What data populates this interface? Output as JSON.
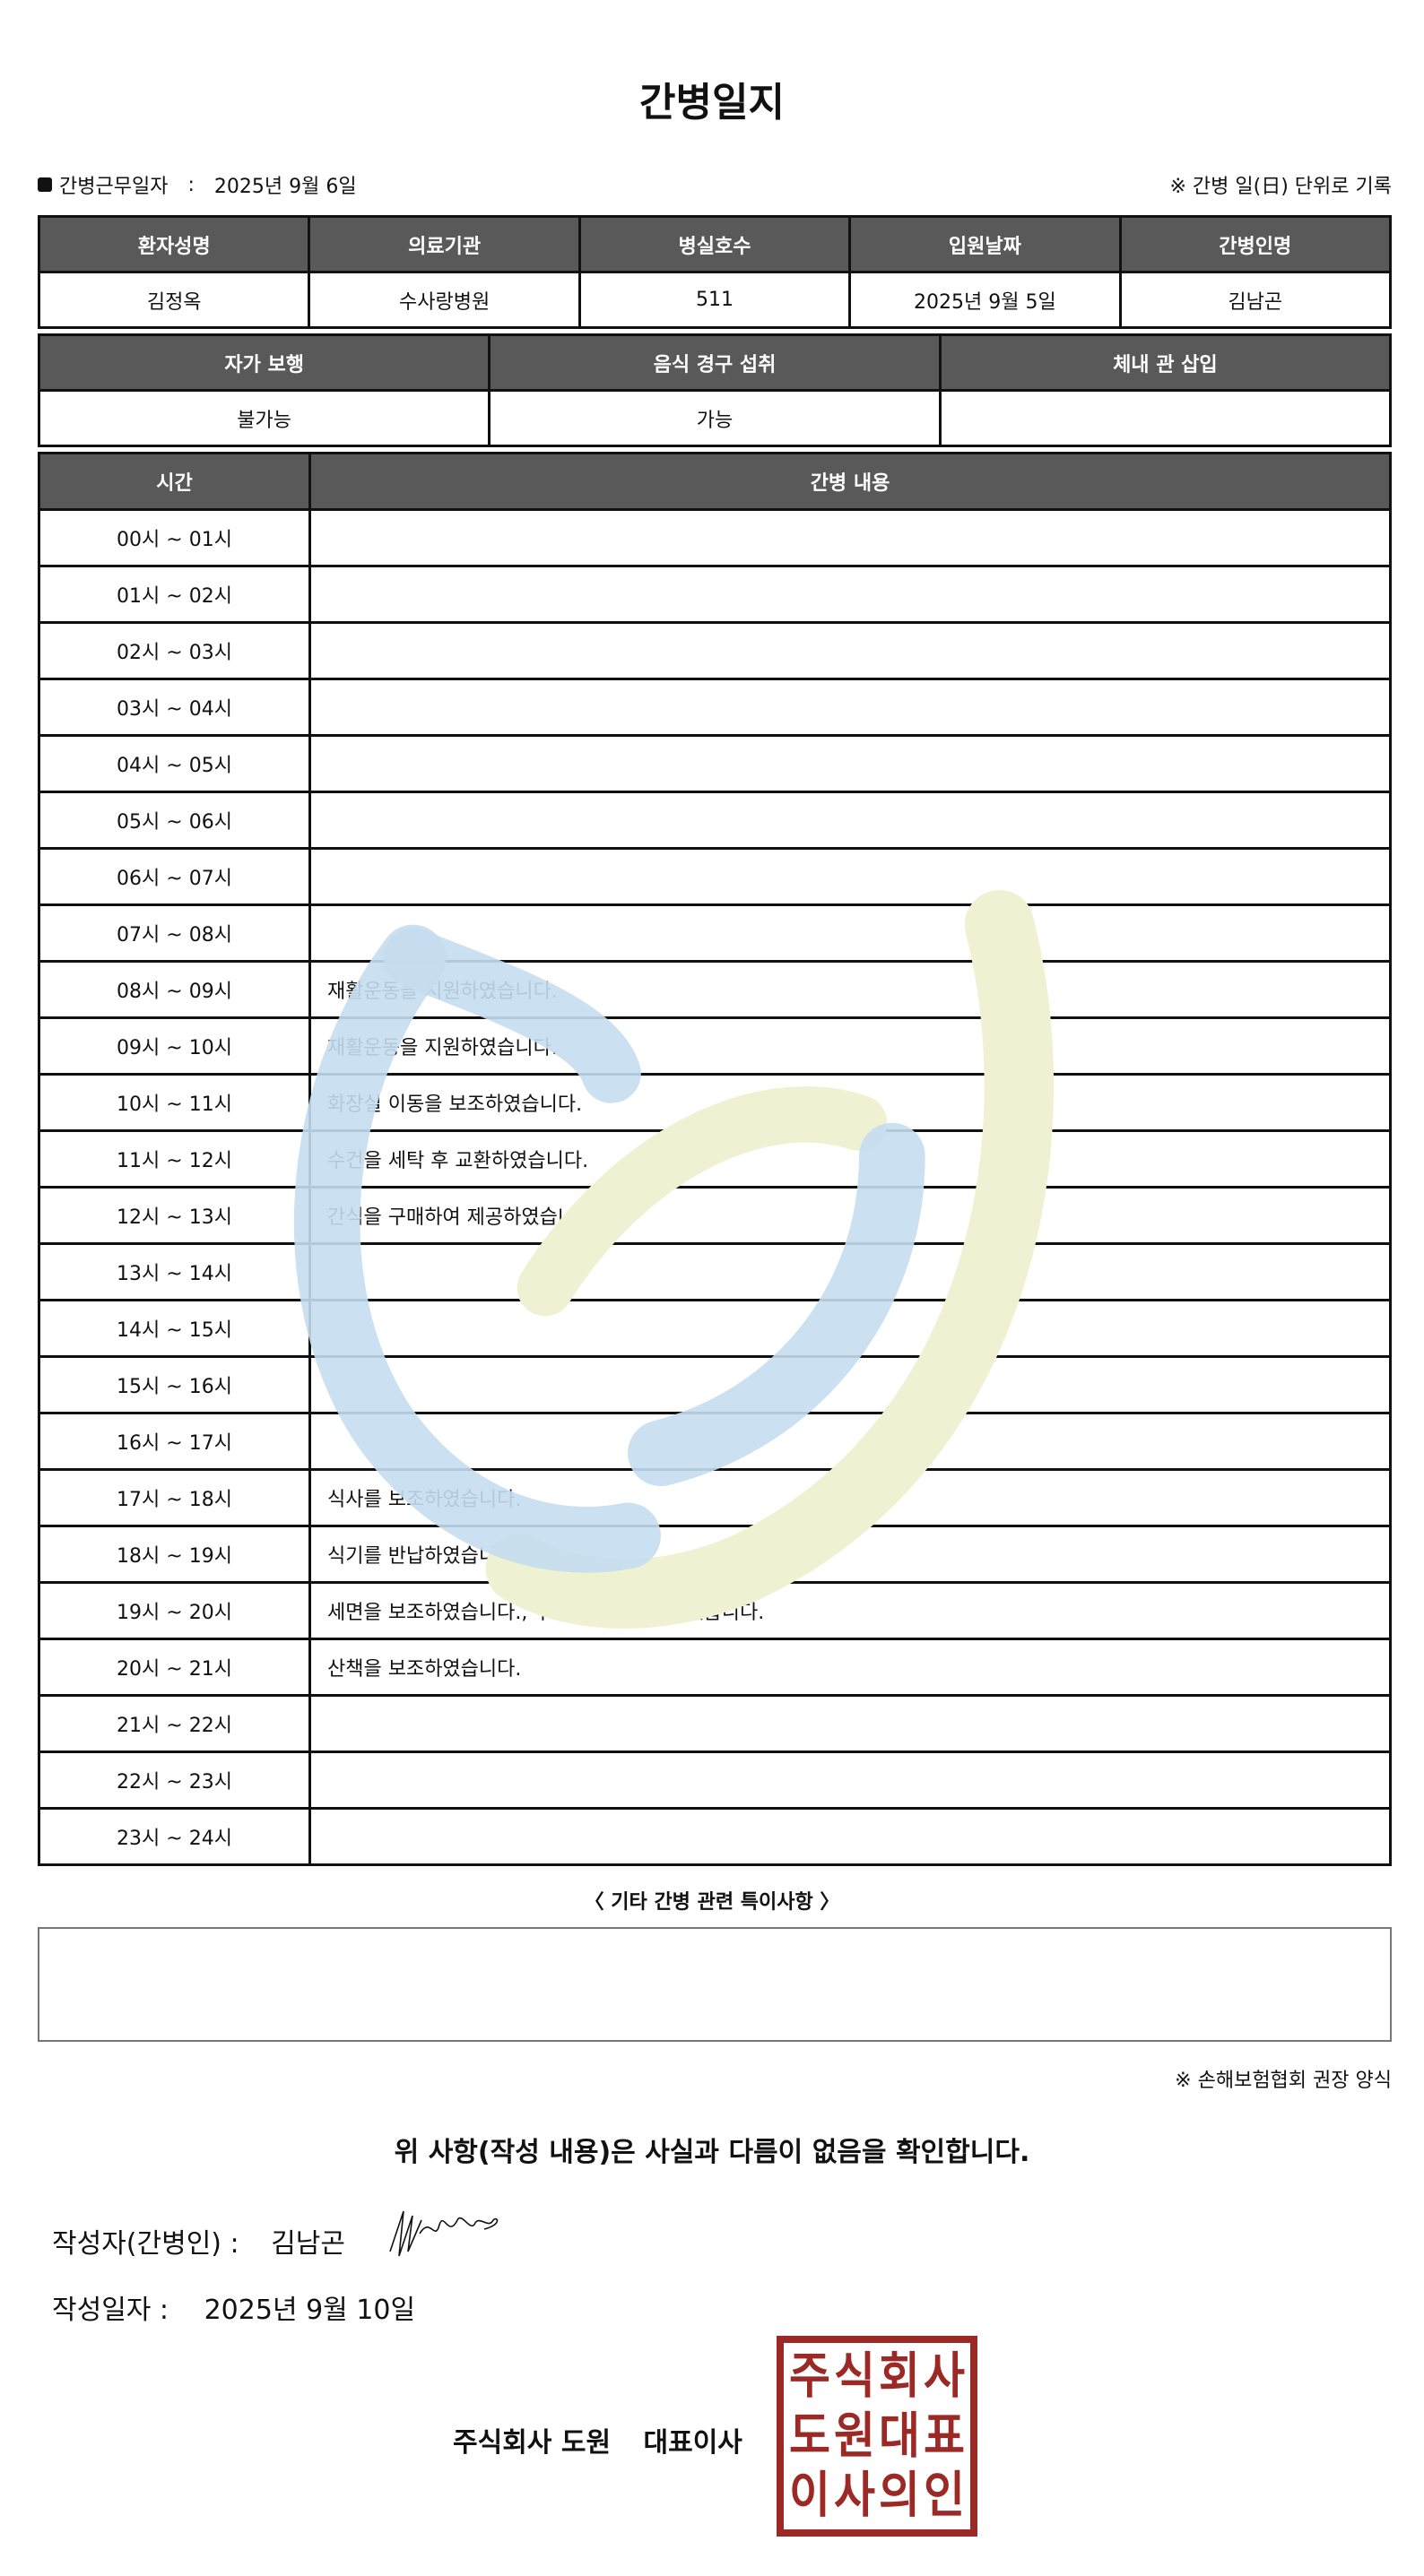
{
  "title": "간병일지",
  "duty_date_label": "간병근무일자",
  "duty_date_sep": ":",
  "duty_date": "2025년 9월 6일",
  "unit_note": "※ 간병 일(日) 단위로 기록",
  "info_table": {
    "headers": [
      "환자성명",
      "의료기관",
      "병실호수",
      "입원날짜",
      "간병인명"
    ],
    "values": [
      "김정옥",
      "수사랑병원",
      "511",
      "2025년 9월 5일",
      "김남곤"
    ]
  },
  "status_table": {
    "headers": [
      "자가 보행",
      "음식 경구 섭취",
      "체내 관 삽입"
    ],
    "values": [
      "불가능",
      "가능",
      ""
    ]
  },
  "log_table": {
    "headers": [
      "시간",
      "간병 내용"
    ],
    "rows": [
      {
        "time": "00시 ~ 01시",
        "content": ""
      },
      {
        "time": "01시 ~ 02시",
        "content": ""
      },
      {
        "time": "02시 ~ 03시",
        "content": ""
      },
      {
        "time": "03시 ~ 04시",
        "content": ""
      },
      {
        "time": "04시 ~ 05시",
        "content": ""
      },
      {
        "time": "05시 ~ 06시",
        "content": ""
      },
      {
        "time": "06시 ~ 07시",
        "content": ""
      },
      {
        "time": "07시 ~ 08시",
        "content": ""
      },
      {
        "time": "08시 ~ 09시",
        "content": "재활운동을 지원하였습니다."
      },
      {
        "time": "09시 ~ 10시",
        "content": "재활운동을 지원하였습니다."
      },
      {
        "time": "10시 ~ 11시",
        "content": "화장실 이동을 보조하였습니다."
      },
      {
        "time": "11시 ~ 12시",
        "content": "수건을 세탁 후 교환하였습니다."
      },
      {
        "time": "12시 ~ 13시",
        "content": "간식을 구매하여 제공하였습니다."
      },
      {
        "time": "13시 ~ 14시",
        "content": ""
      },
      {
        "time": "14시 ~ 15시",
        "content": ""
      },
      {
        "time": "15시 ~ 16시",
        "content": ""
      },
      {
        "time": "16시 ~ 17시",
        "content": ""
      },
      {
        "time": "17시 ~ 18시",
        "content": "식사를 보조하였습니다."
      },
      {
        "time": "18시 ~ 19시",
        "content": "식기를 반납하였습니다."
      },
      {
        "time": "19시 ~ 20시",
        "content": "세면을 보조하였습니다., 구강청결을 지원하였습니다."
      },
      {
        "time": "20시 ~ 21시",
        "content": "산책을 보조하였습니다."
      },
      {
        "time": "21시 ~ 22시",
        "content": ""
      },
      {
        "time": "22시 ~ 23시",
        "content": ""
      },
      {
        "time": "23시 ~ 24시",
        "content": ""
      }
    ]
  },
  "remarks": {
    "label": "〈 기타 간병 관련 특이사항 〉",
    "content": ""
  },
  "form_note": "※ 손해보험협회 권장 양식",
  "confirmation": "위 사항(작성 내용)은 사실과 다름이 없음을 확인합니다.",
  "author_label": "작성자(간병인) :",
  "author_name": "김남곤",
  "written_date_label": "작성일자 :",
  "written_date": "2025년 9월 10일",
  "company": "주식회사 도원",
  "representative": "대표이사",
  "seal_text": "주식회사도원대표이사의인",
  "colors": {
    "header_bg": "#595959",
    "seal": "#9b2a27",
    "watermark_blue": "#c5ddf0",
    "watermark_green": "#eef2d2"
  }
}
